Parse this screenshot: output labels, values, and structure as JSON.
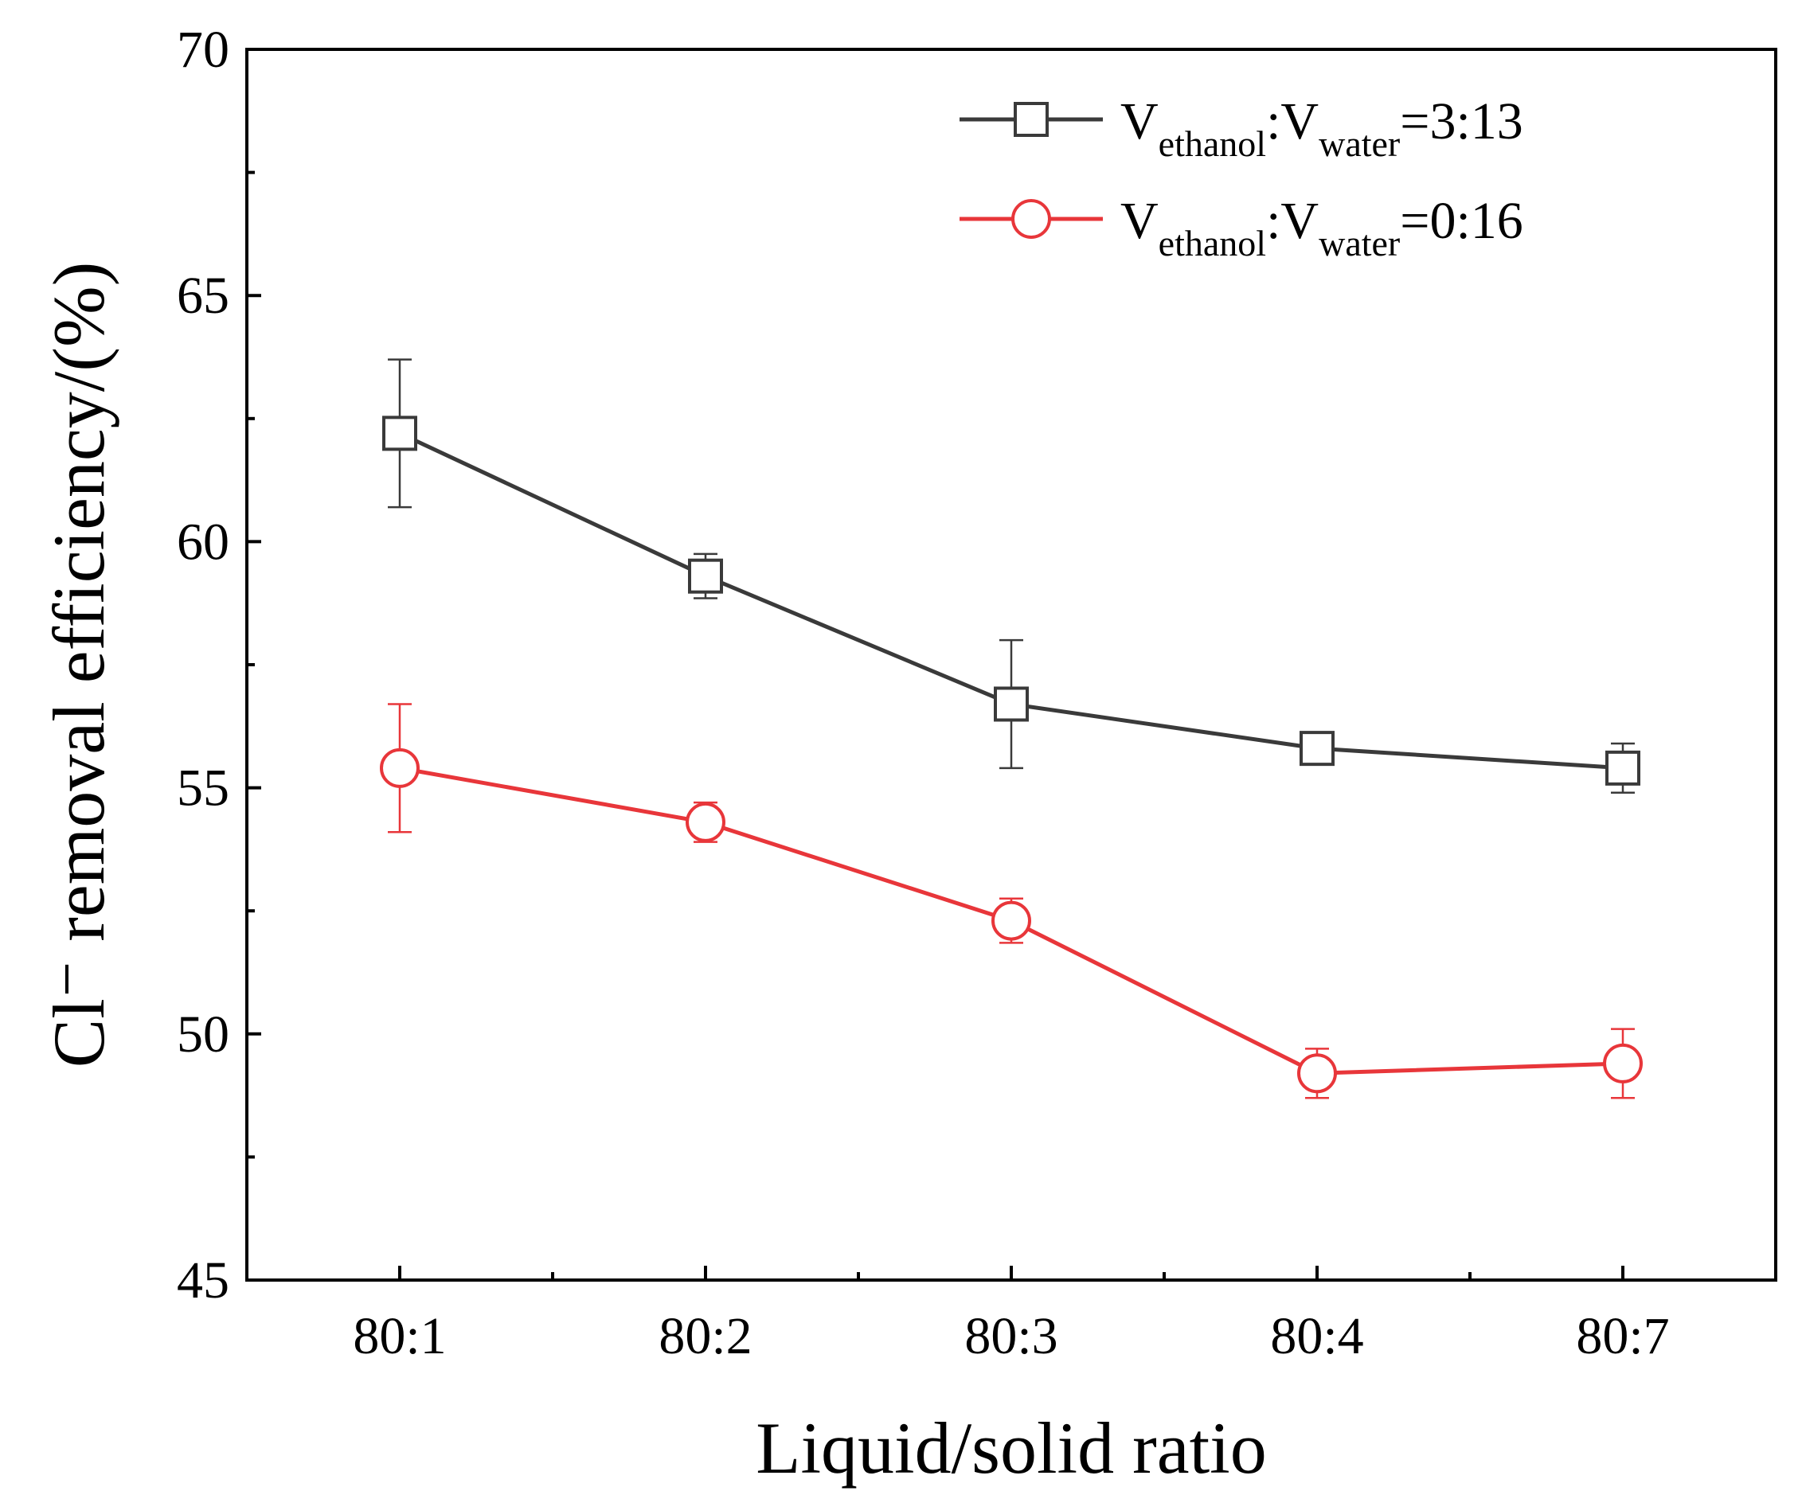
{
  "chart_data": {
    "type": "line",
    "title": "",
    "xlabel": "Liquid/solid ratio",
    "ylabel": "Cl⁻ removal efficiency/(%)",
    "categories": [
      "80:1",
      "80:2",
      "80:3",
      "80:4",
      "80:7"
    ],
    "ylim": [
      45,
      70
    ],
    "yticks": [
      "45",
      "50",
      "55",
      "60",
      "65",
      "70"
    ],
    "grid": false,
    "legend_position": "top-right",
    "series": [
      {
        "name": "Vethanol:Vwater=3:13",
        "legend": {
          "v1": "V",
          "sub1": "ethanol",
          "sep": ":",
          "v2": "V",
          "sub2": "water",
          "ratio": "=3:13"
        },
        "marker": "square",
        "color": "#3a3a3a",
        "values": [
          62.2,
          59.3,
          56.7,
          55.8,
          55.4
        ],
        "errors": [
          1.5,
          0.45,
          1.3,
          0.1,
          0.5
        ]
      },
      {
        "name": "Vethanol:Vwater=0:16",
        "legend": {
          "v1": "V",
          "sub1": "ethanol",
          "sep": ":",
          "v2": "V",
          "sub2": "water",
          "ratio": "=0:16"
        },
        "marker": "circle",
        "color": "#e8363a",
        "values": [
          55.4,
          54.3,
          52.3,
          49.2,
          49.4
        ],
        "errors": [
          1.3,
          0.4,
          0.45,
          0.5,
          0.7
        ]
      }
    ]
  }
}
